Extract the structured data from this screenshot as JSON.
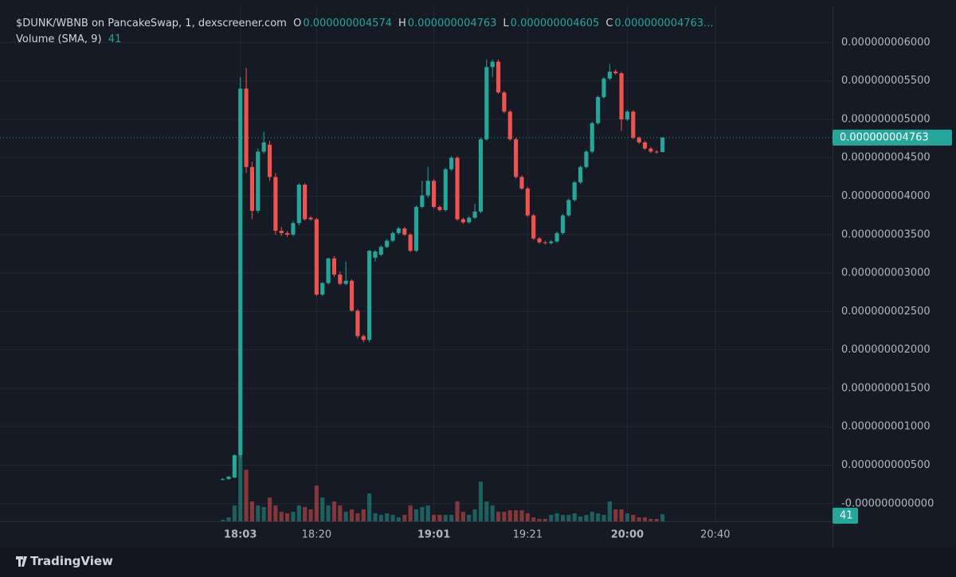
{
  "header": {
    "title": "$DUNK/WBNB on PancakeSwap, 1, dexscreener.com",
    "ohlc": [
      {
        "key": "O",
        "label": "0.000000004574"
      },
      {
        "key": "H",
        "label": "0.000000004763"
      },
      {
        "key": "L",
        "label": "0.000000004605"
      },
      {
        "key": "C",
        "label": "0.000000004763..."
      }
    ],
    "volume_title": "Volume (SMA, 9)",
    "volume_sma": 41
  },
  "footer": {
    "brand": "TradingView"
  },
  "chart_data": {
    "type": "candlestick",
    "up_color": "#26a69a",
    "down_color": "#ef5350",
    "xlim": [
      -38,
      104
    ],
    "xticks": [
      {
        "value": 3,
        "label": "18:03",
        "bold": true
      },
      {
        "value": 16,
        "label": "18:20",
        "bold": false
      },
      {
        "value": 36,
        "label": "19:01",
        "bold": true
      },
      {
        "value": 52,
        "label": "19:21",
        "bold": false
      },
      {
        "value": 69,
        "label": "20:00",
        "bold": true
      },
      {
        "value": 84,
        "label": "20:40",
        "bold": false
      }
    ],
    "ylim": [
      -2.3e-10,
      6.47e-09
    ],
    "yticks": [
      {
        "value": 6e-09,
        "label": "0.000000006000"
      },
      {
        "value": 5.5e-09,
        "label": "0.000000005500"
      },
      {
        "value": 5e-09,
        "label": "0.000000005000"
      },
      {
        "value": 4.5e-09,
        "label": "0.000000004500"
      },
      {
        "value": 4e-09,
        "label": "0.000000004000"
      },
      {
        "value": 3.5e-09,
        "label": "0.000000003500"
      },
      {
        "value": 3e-09,
        "label": "0.000000003000"
      },
      {
        "value": 2.5e-09,
        "label": "0.000000002500"
      },
      {
        "value": 2e-09,
        "label": "0.000000002000"
      },
      {
        "value": 1.5e-09,
        "label": "0.000000001500"
      },
      {
        "value": 1e-09,
        "label": "0.000000001000"
      },
      {
        "value": 5e-10,
        "label": "0.000000000500"
      },
      {
        "value": 0,
        "label": "-0.000000000000"
      }
    ],
    "grid": true,
    "last_price_label": "0.000000004763",
    "open": [
      3.1e-10,
      3.2e-10,
      3.4e-10,
      6.3e-10,
      5.4e-09,
      4.38e-09,
      3.81e-09,
      4.58e-09,
      4.67e-09,
      4.25e-09,
      3.55e-09,
      3.52e-09,
      3.5e-09,
      3.65e-09,
      4.15e-09,
      3.72e-09,
      3.7e-09,
      2.72e-09,
      2.87e-09,
      3.19e-09,
      2.98e-09,
      2.86e-09,
      2.9e-09,
      2.51e-09,
      2.18e-09,
      2.13e-09,
      3.2e-09,
      3.24e-09,
      3.34e-09,
      3.42e-09,
      3.52e-09,
      3.58e-09,
      3.5e-09,
      3.29e-09,
      3.86e-09,
      4.01e-09,
      4.2e-09,
      3.86e-09,
      3.82e-09,
      4.35e-09,
      4.5e-09,
      3.7e-09,
      3.66e-09,
      3.72e-09,
      3.8e-09,
      4.74e-09,
      5.68e-09,
      5.75e-09,
      5.35e-09,
      5.1e-09,
      4.74e-09,
      4.25e-09,
      4.1e-09,
      3.75e-09,
      3.45e-09,
      3.4e-09,
      3.39e-09,
      3.41e-09,
      3.52e-09,
      3.75e-09,
      3.95e-09,
      4.18e-09,
      4.38e-09,
      4.58e-09,
      4.95e-09,
      5.29e-09,
      5.53e-09,
      5.62e-09,
      5.6e-09,
      5e-09,
      5.1e-09,
      4.76e-09,
      4.7e-09,
      4.62e-09,
      4.58e-09,
      4.574e-09
    ],
    "high": [
      3.3e-10,
      3.6e-10,
      6.4e-10,
      5.55e-09,
      5.67e-09,
      4.45e-09,
      4.62e-09,
      4.84e-09,
      4.72e-09,
      4.3e-09,
      3.6e-09,
      3.55e-09,
      3.68e-09,
      4.17e-09,
      4.17e-09,
      3.74e-09,
      3.72e-09,
      2.88e-09,
      3.2e-09,
      3.22e-09,
      3.02e-09,
      3.15e-09,
      2.92e-09,
      2.53e-09,
      2.2e-09,
      3.3e-09,
      3.3e-09,
      3.36e-09,
      3.44e-09,
      3.54e-09,
      3.6e-09,
      3.6e-09,
      3.52e-09,
      3.88e-09,
      4.2e-09,
      4.38e-09,
      4.22e-09,
      3.88e-09,
      4.37e-09,
      4.52e-09,
      4.52e-09,
      3.72e-09,
      3.74e-09,
      3.9e-09,
      4.76e-09,
      5.78e-09,
      5.78e-09,
      5.78e-09,
      5.37e-09,
      5.12e-09,
      4.76e-09,
      4.27e-09,
      4.12e-09,
      3.77e-09,
      3.47e-09,
      3.42e-09,
      3.43e-09,
      3.54e-09,
      3.77e-09,
      3.97e-09,
      4.2e-09,
      4.4e-09,
      4.6e-09,
      4.97e-09,
      5.31e-09,
      5.55e-09,
      5.72e-09,
      5.65e-09,
      5.62e-09,
      5.12e-09,
      5.12e-09,
      4.78e-09,
      4.72e-09,
      4.64e-09,
      4.6e-09,
      4.763e-09
    ],
    "low": [
      3e-10,
      3.1e-10,
      3.3e-10,
      6e-10,
      4.3e-09,
      3.7e-09,
      3.78e-09,
      4.55e-09,
      4.2e-09,
      3.5e-09,
      3.48e-09,
      3.47e-09,
      3.48e-09,
      3.62e-09,
      3.68e-09,
      3.68e-09,
      2.7e-09,
      2.7e-09,
      2.85e-09,
      2.95e-09,
      2.84e-09,
      2.84e-09,
      2.5e-09,
      2.15e-09,
      2.1e-09,
      2.1e-09,
      3.15e-09,
      3.22e-09,
      3.32e-09,
      3.4e-09,
      3.5e-09,
      3.48e-09,
      3.27e-09,
      3.27e-09,
      3.84e-09,
      3.98e-09,
      3.84e-09,
      3.8e-09,
      3.8e-09,
      4.33e-09,
      3.68e-09,
      3.64e-09,
      3.64e-09,
      3.7e-09,
      3.78e-09,
      4.72e-09,
      5.55e-09,
      5.33e-09,
      5.08e-09,
      4.72e-09,
      4.23e-09,
      4.08e-09,
      3.73e-09,
      3.43e-09,
      3.38e-09,
      3.37e-09,
      3.37e-09,
      3.39e-09,
      3.5e-09,
      3.73e-09,
      3.93e-09,
      4.16e-09,
      4.36e-09,
      4.56e-09,
      4.93e-09,
      5.27e-09,
      5.51e-09,
      5.58e-09,
      4.85e-09,
      4.98e-09,
      4.74e-09,
      4.68e-09,
      4.6e-09,
      4.56e-09,
      4.55e-09,
      4.605e-09
    ],
    "close": [
      3.2e-10,
      3.5e-10,
      6.3e-10,
      5.4e-09,
      4.38e-09,
      3.81e-09,
      4.58e-09,
      4.7e-09,
      4.25e-09,
      3.55e-09,
      3.52e-09,
      3.5e-09,
      3.65e-09,
      4.15e-09,
      3.7e-09,
      3.7e-09,
      2.72e-09,
      2.87e-09,
      3.19e-09,
      2.98e-09,
      2.86e-09,
      2.9e-09,
      2.51e-09,
      2.18e-09,
      2.13e-09,
      3.29e-09,
      3.28e-09,
      3.34e-09,
      3.42e-09,
      3.52e-09,
      3.58e-09,
      3.5e-09,
      3.29e-09,
      3.86e-09,
      4.01e-09,
      4.2e-09,
      3.86e-09,
      3.82e-09,
      4.35e-09,
      4.5e-09,
      3.7e-09,
      3.66e-09,
      3.72e-09,
      3.8e-09,
      4.74e-09,
      5.68e-09,
      5.75e-09,
      5.35e-09,
      5.1e-09,
      4.74e-09,
      4.25e-09,
      4.1e-09,
      3.75e-09,
      3.45e-09,
      3.4e-09,
      3.39e-09,
      3.41e-09,
      3.52e-09,
      3.75e-09,
      3.95e-09,
      4.18e-09,
      4.38e-09,
      4.58e-09,
      4.95e-09,
      5.29e-09,
      5.53e-09,
      5.62e-09,
      5.6e-09,
      5e-09,
      5.1e-09,
      4.76e-09,
      4.7e-09,
      4.62e-09,
      4.58e-09,
      4.57e-09,
      4.763e-09
    ],
    "volume": {
      "ylim": [
        0,
        600
      ],
      "values": [
        9,
        23,
        92,
        382,
        299,
        115,
        92,
        83,
        138,
        92,
        55,
        46,
        55,
        92,
        83,
        69,
        207,
        138,
        92,
        115,
        92,
        55,
        69,
        46,
        69,
        161,
        46,
        37,
        46,
        37,
        23,
        37,
        92,
        69,
        83,
        92,
        37,
        37,
        37,
        37,
        115,
        55,
        37,
        69,
        230,
        115,
        92,
        55,
        55,
        64,
        64,
        64,
        46,
        23,
        14,
        14,
        37,
        46,
        37,
        37,
        46,
        28,
        37,
        55,
        46,
        37,
        115,
        69,
        69,
        46,
        37,
        23,
        23,
        14,
        14,
        41
      ]
    }
  }
}
